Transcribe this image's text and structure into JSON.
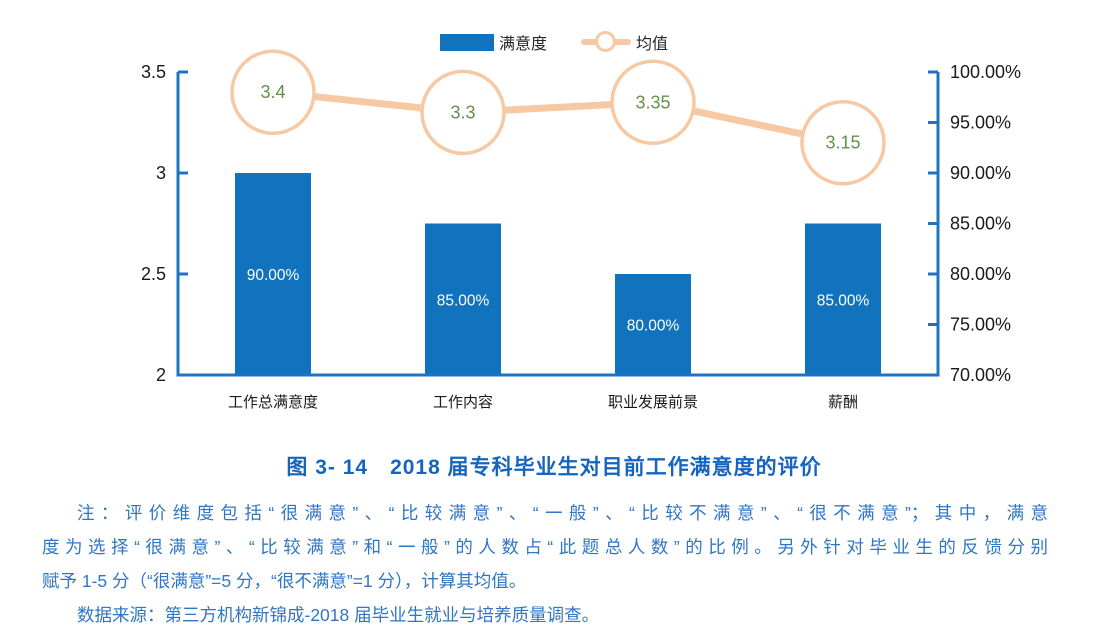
{
  "chart_data": {
    "type": "bar",
    "subtype": "combo-bar-line-dual-axis",
    "categories": [
      "工作总满意度",
      "工作内容",
      "职业发展前景",
      "薪酬"
    ],
    "series": [
      {
        "name": "满意度",
        "type": "bar",
        "axis": "right",
        "values": [
          90,
          85,
          80,
          85
        ],
        "labels": [
          "90.00%",
          "85.00%",
          "80.00%",
          "85.00%"
        ]
      },
      {
        "name": "均值",
        "type": "line",
        "axis": "left",
        "values": [
          3.4,
          3.3,
          3.35,
          3.15
        ],
        "labels": [
          "3.4",
          "3.3",
          "3.35",
          "3.15"
        ]
      }
    ],
    "left_axis": {
      "min": 2,
      "max": 3.5,
      "ticks": [
        {
          "v": 3.5,
          "label": "3.5"
        },
        {
          "v": 3,
          "label": "3"
        },
        {
          "v": 2.5,
          "label": "2.5"
        },
        {
          "v": 2,
          "label": "2"
        }
      ]
    },
    "right_axis": {
      "min": 70,
      "max": 100,
      "ticks": [
        {
          "v": 100,
          "label": "100.00%"
        },
        {
          "v": 95,
          "label": "95.00%"
        },
        {
          "v": 90,
          "label": "90.00%"
        },
        {
          "v": 85,
          "label": "85.00%"
        },
        {
          "v": 80,
          "label": "80.00%"
        },
        {
          "v": 75,
          "label": "75.00%"
        },
        {
          "v": 70,
          "label": "70.00%"
        }
      ]
    },
    "legend_position": "top-center",
    "grid": false,
    "colors": {
      "bar": "#1173BD",
      "axis": "#1E73C2",
      "line": "#F7C9A3",
      "marker_fill": "#FFFFFF",
      "marker_text": "#63914A",
      "bar_label": "#FFFFFF",
      "tick_text": "#1A1A1A"
    }
  },
  "caption": {
    "text": "图 3- 14　2018 届专科毕业生对目前工作满意度的评价",
    "color": "#1565C0"
  },
  "notes": {
    "color": "#2F76C5",
    "lines": [
      {
        "text": "注：评价维度包括“很满意”、“比较满意”、“一般”、“比较不满意”、“很不满意”；其中，满意",
        "indent": true,
        "justify": true
      },
      {
        "text": "度为选择“很满意”、“比较满意”和“一般”的人数占“此题总人数”的比例。另外针对毕业生的反馈分别",
        "indent": false,
        "justify": true
      },
      {
        "text": "赋予 1-5 分（“很满意”=5 分，“很不满意”=1 分），计算其均值。",
        "indent": false,
        "justify": false
      },
      {
        "text": "数据来源：第三方机构新锦成-2018 届毕业生就业与培养质量调查。",
        "indent": true,
        "justify": false
      }
    ]
  }
}
